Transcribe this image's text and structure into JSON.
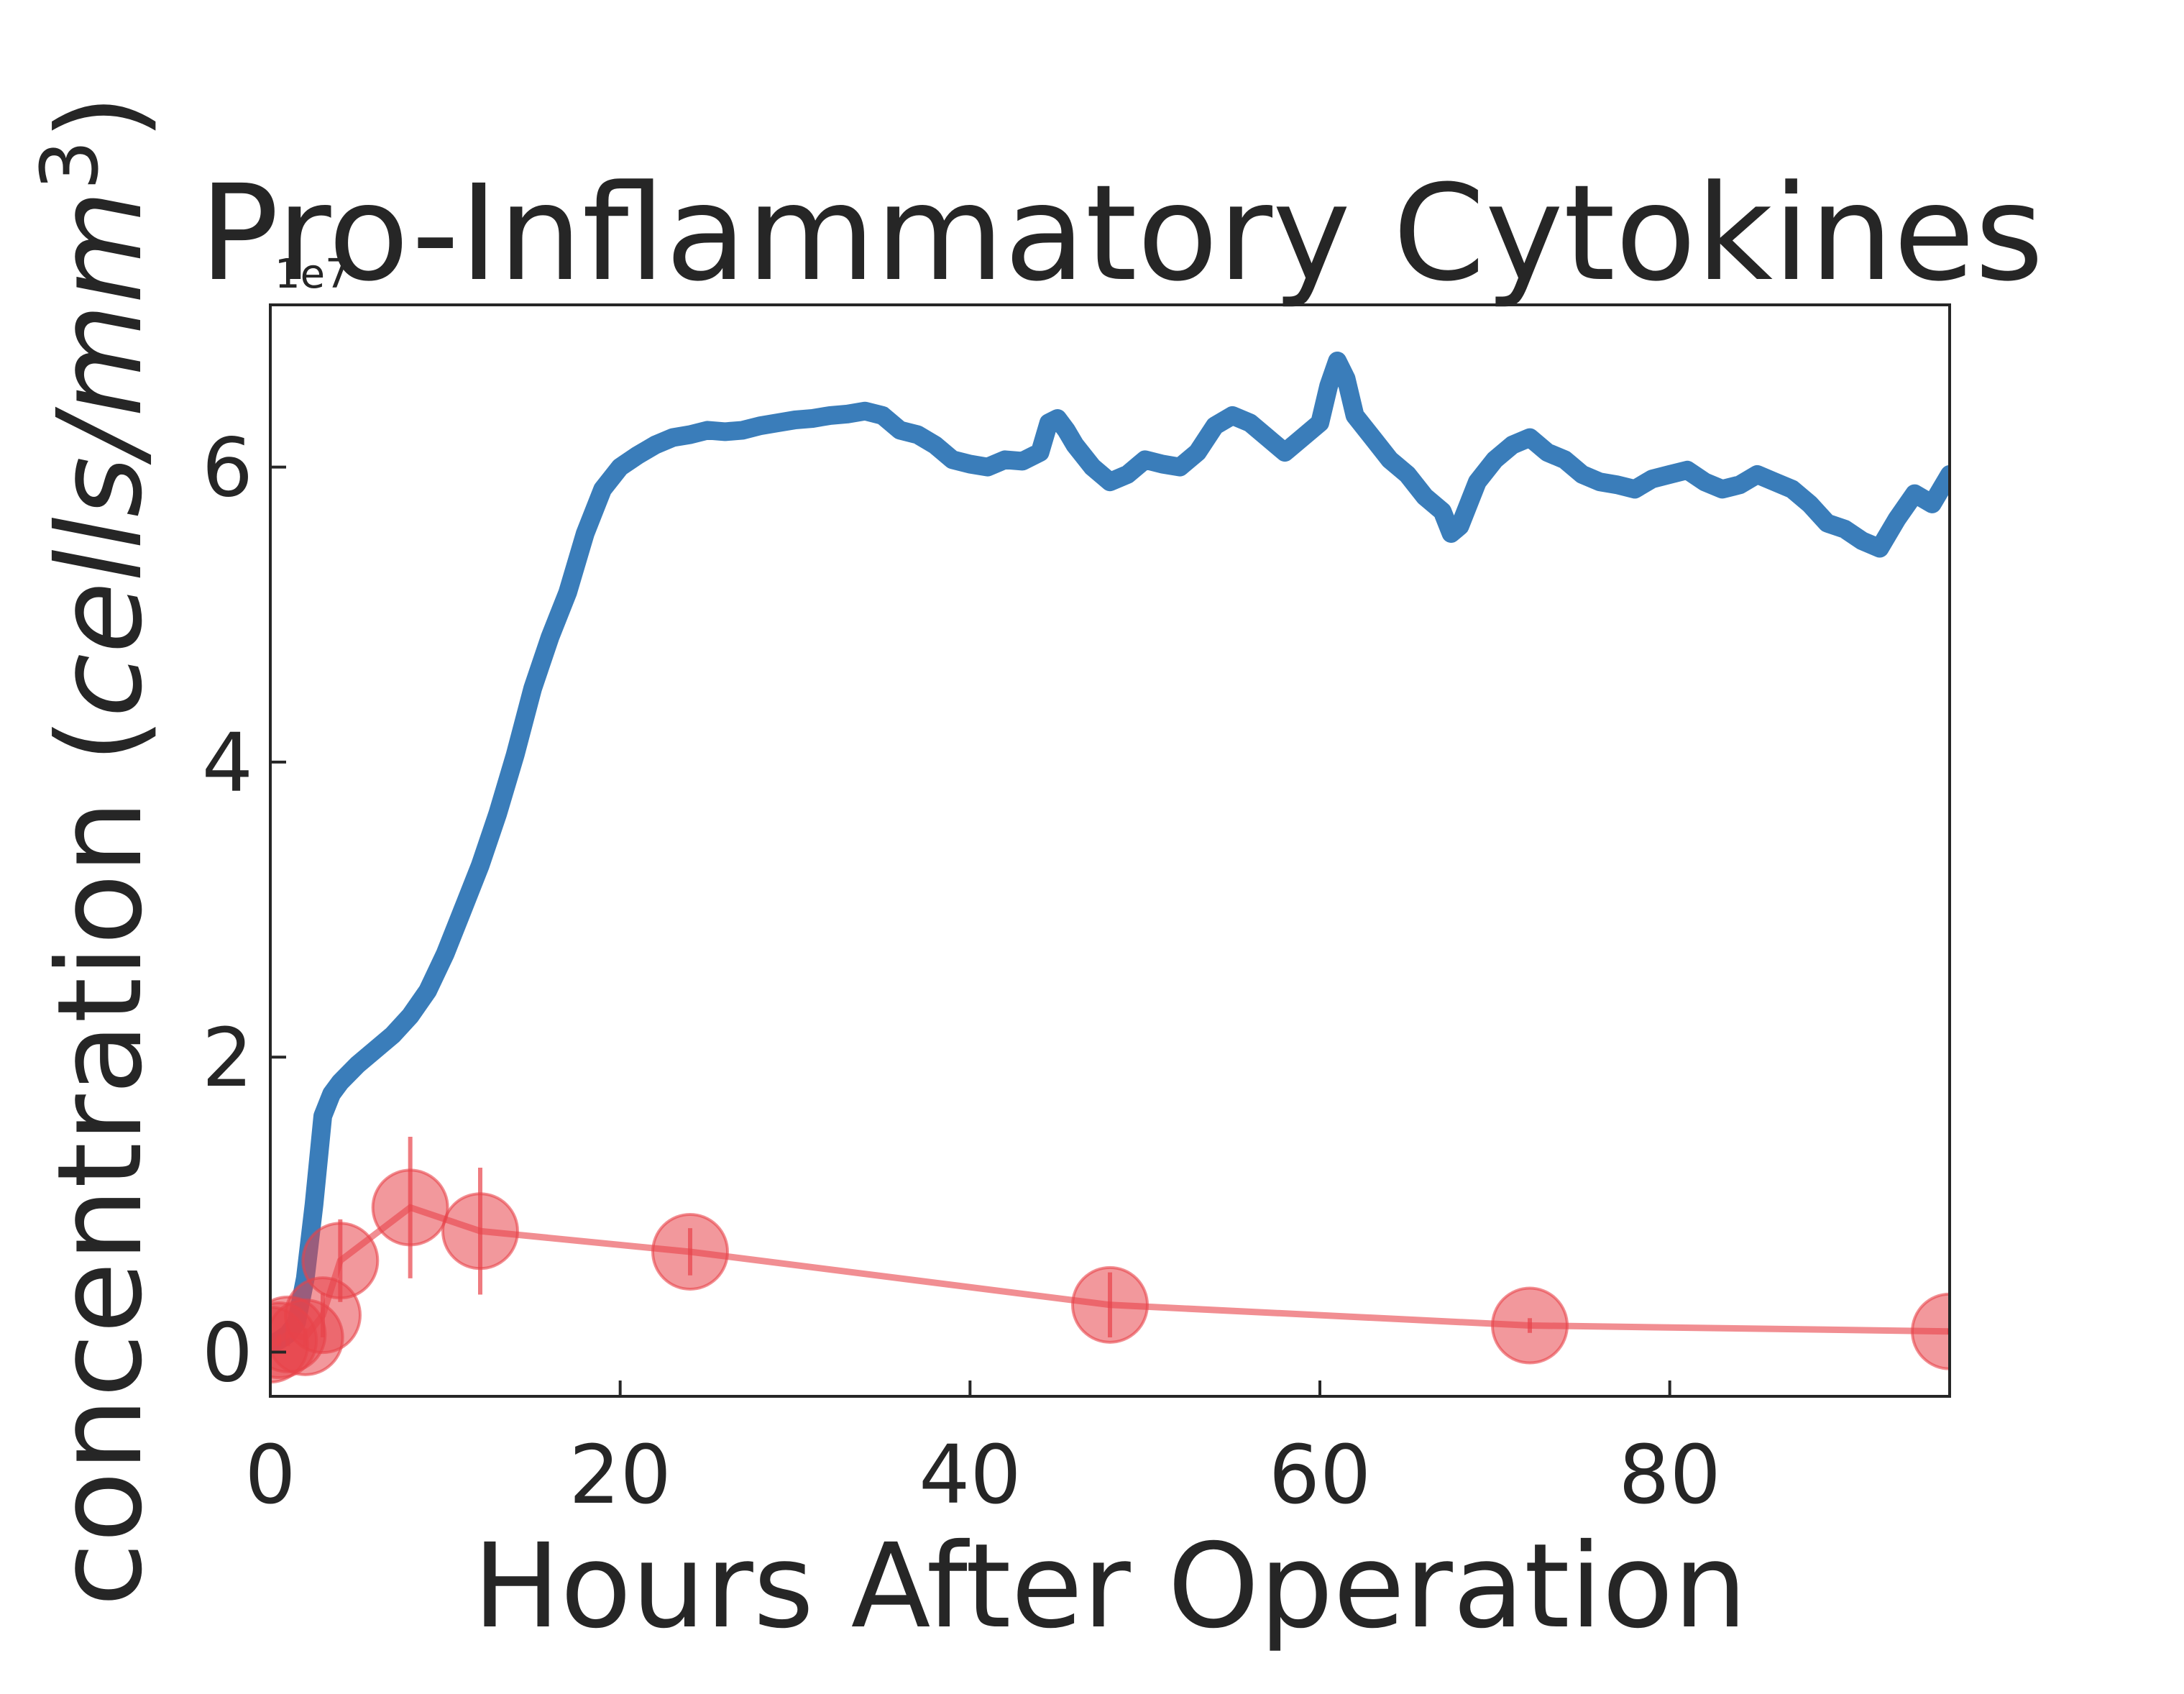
{
  "chart_data": {
    "type": "line",
    "title": "Pro-Inflammatory Cytokines",
    "xlabel": "Hours After Operation",
    "ylabel_parts": [
      "concentration (",
      "cells/mm",
      "3",
      ")"
    ],
    "y_offset_label": "1e7",
    "xlim": [
      0,
      96
    ],
    "ylim": [
      -0.3,
      7.1
    ],
    "x_ticks": [
      0,
      20,
      40,
      60,
      80
    ],
    "x_tick_labels": [
      "0",
      "20",
      "40",
      "60",
      "80"
    ],
    "y_ticks": [
      0,
      2,
      4,
      6
    ],
    "y_tick_labels": [
      "0",
      "2",
      "4",
      "6"
    ],
    "grid": false,
    "series": [
      {
        "kind": "line",
        "color": "#3a7dba",
        "x": [
          0,
          0.5,
          1,
          1.5,
          2,
          2.5,
          3,
          3.5,
          4,
          5,
          6,
          7,
          8,
          9,
          10,
          11,
          12,
          13,
          14,
          15,
          16,
          17,
          18,
          19,
          20,
          21,
          22,
          23,
          24,
          25,
          26,
          27,
          28,
          29,
          30,
          31,
          32,
          33,
          34,
          35,
          36,
          37,
          38,
          39,
          40,
          41,
          42,
          43,
          44,
          44.5,
          45,
          45.5,
          46,
          47,
          48,
          49,
          50,
          51,
          52,
          53,
          54,
          55,
          56,
          57,
          58,
          59,
          60,
          60.5,
          61,
          61.5,
          62,
          63,
          64,
          65,
          66,
          67,
          67.5,
          68,
          69,
          70,
          71,
          72,
          73,
          74,
          75,
          76,
          77,
          78,
          79,
          80,
          81,
          82,
          83,
          84,
          85,
          86,
          87,
          88,
          89,
          90,
          91,
          92,
          93,
          94,
          95,
          96
        ],
        "values": [
          0.05,
          0.08,
          0.12,
          0.2,
          0.5,
          1.0,
          1.6,
          1.75,
          1.83,
          1.95,
          2.05,
          2.15,
          2.28,
          2.45,
          2.7,
          3.0,
          3.3,
          3.65,
          4.05,
          4.5,
          4.85,
          5.15,
          5.55,
          5.85,
          6.0,
          6.08,
          6.15,
          6.2,
          6.22,
          6.25,
          6.24,
          6.25,
          6.28,
          6.3,
          6.32,
          6.33,
          6.35,
          6.36,
          6.38,
          6.35,
          6.25,
          6.22,
          6.15,
          6.05,
          6.02,
          6.0,
          6.05,
          6.04,
          6.1,
          6.3,
          6.33,
          6.25,
          6.15,
          6.0,
          5.9,
          5.95,
          6.05,
          6.02,
          6.0,
          6.1,
          6.28,
          6.35,
          6.3,
          6.2,
          6.1,
          6.2,
          6.3,
          6.55,
          6.72,
          6.6,
          6.35,
          6.2,
          6.05,
          5.95,
          5.8,
          5.7,
          5.55,
          5.6,
          5.9,
          6.05,
          6.15,
          6.2,
          6.1,
          6.05,
          5.95,
          5.9,
          5.88,
          5.85,
          5.92,
          5.95,
          5.98,
          5.9,
          5.85,
          5.88,
          5.95,
          5.9,
          5.85,
          5.75,
          5.62,
          5.58,
          5.5,
          5.45,
          5.65,
          5.82,
          5.75,
          5.95
        ]
      },
      {
        "kind": "errorbar-markers",
        "color": "#e8434a",
        "x": [
          0,
          0.5,
          1,
          2,
          3,
          4,
          8,
          12,
          24,
          48,
          72,
          96
        ],
        "values": [
          0.05,
          0.08,
          0.12,
          0.1,
          0.25,
          0.62,
          0.98,
          0.82,
          0.68,
          0.32,
          0.18,
          0.14
        ],
        "errors": [
          0.03,
          0.04,
          0.08,
          0.06,
          0.15,
          0.28,
          0.48,
          0.43,
          0.16,
          0.22,
          0.05,
          0.02
        ]
      }
    ]
  }
}
